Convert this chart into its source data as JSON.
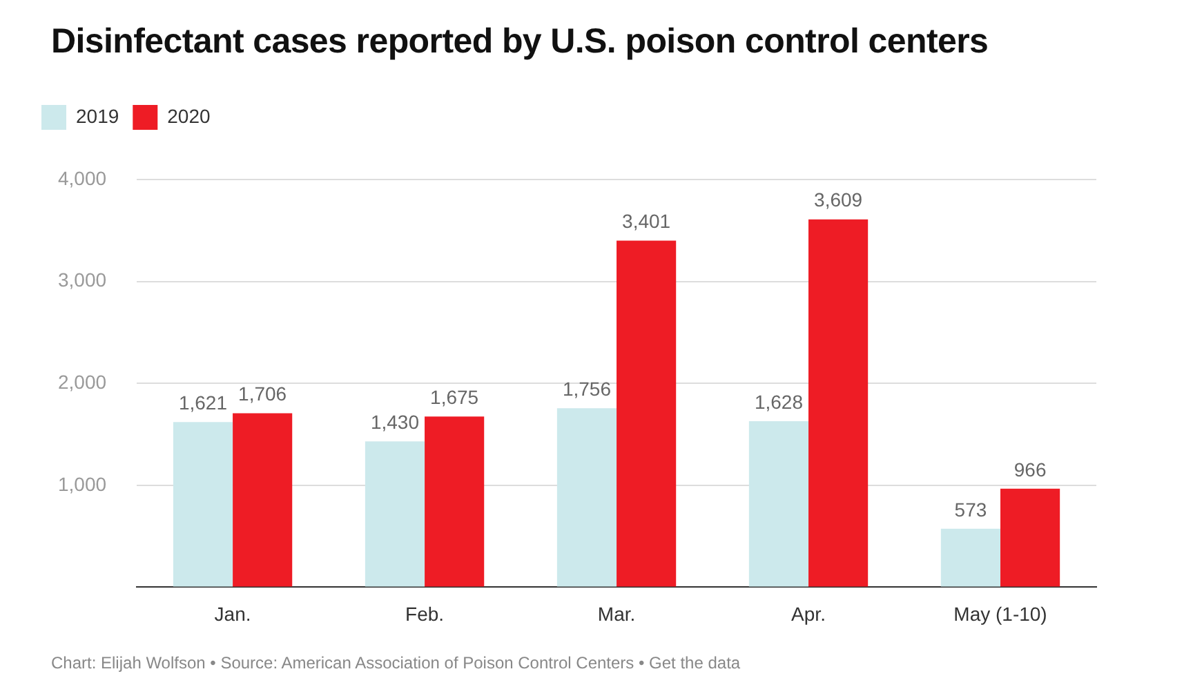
{
  "chart_data": {
    "type": "bar",
    "title": "Disinfectant cases reported by U.S. poison control centers",
    "categories": [
      "Jan.",
      "Feb.",
      "Mar.",
      "Apr.",
      "May (1-10)"
    ],
    "series": [
      {
        "name": "2019",
        "color": "#cce9ec",
        "values": [
          1621,
          1430,
          1756,
          1628,
          573
        ],
        "value_labels": [
          "1,621",
          "1,430",
          "1,756",
          "1,628",
          "573"
        ]
      },
      {
        "name": "2020",
        "color": "#ee1c25",
        "values": [
          1706,
          1675,
          3401,
          3609,
          966
        ],
        "value_labels": [
          "1,706",
          "1,675",
          "3,401",
          "3,609",
          "966"
        ]
      }
    ],
    "ylim": [
      0,
      4000
    ],
    "yticks": [
      {
        "value": 0,
        "label": null
      },
      {
        "value": 1000,
        "label": "1,000"
      },
      {
        "value": 2000,
        "label": "2,000"
      },
      {
        "value": 3000,
        "label": "3,000"
      },
      {
        "value": 4000,
        "label": "4,000"
      }
    ],
    "grid": "y",
    "legend": "top left",
    "annotations": [
      "Chart: Elijah Wolfson • Source: American Association of Poison Control Centers • Get the data"
    ]
  }
}
